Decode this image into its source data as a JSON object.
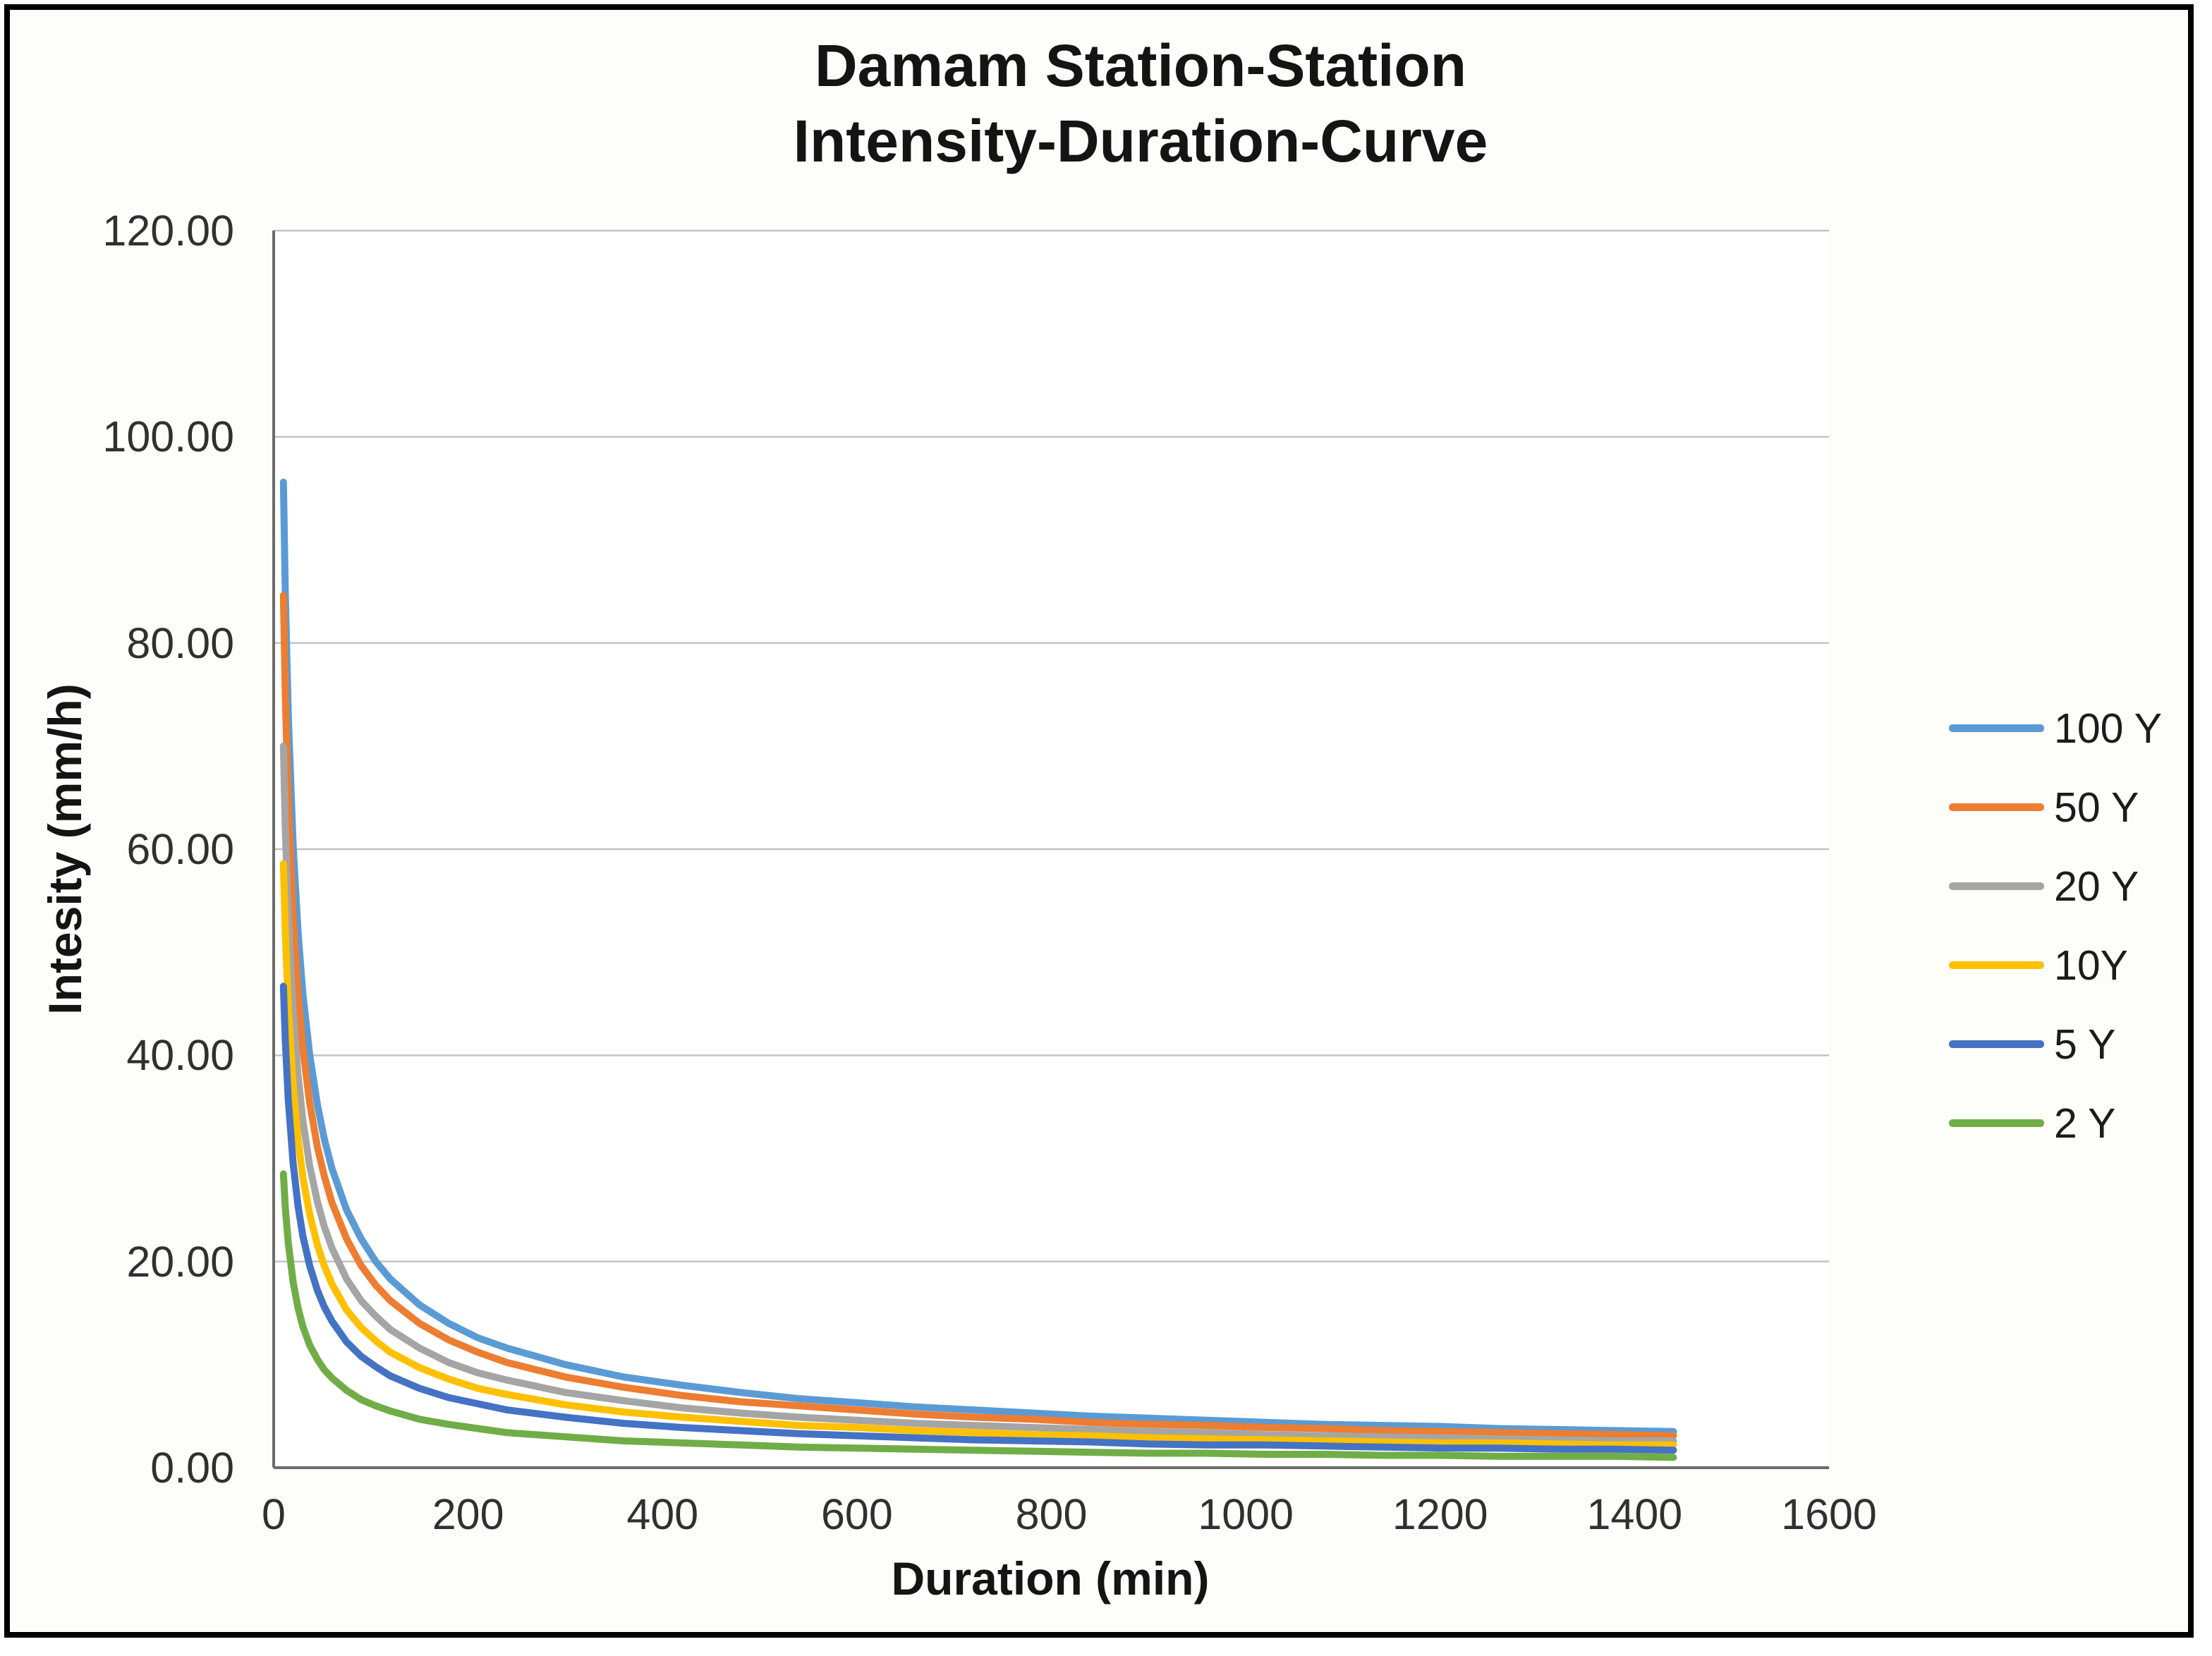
{
  "chart": {
    "title_line1": "Damam Station-Station",
    "title_line2": "Intensity-Duration-Curve",
    "ylabel": "Intesity (mm/h)",
    "xlabel": "Duration (min)"
  },
  "chart_data": {
    "type": "line",
    "title": "Damam Station-Station Intensity-Duration-Curve",
    "xlabel": "Duration (min)",
    "ylabel": "Intesity (mm/h)",
    "xlim": [
      0,
      1600
    ],
    "ylim": [
      0,
      120
    ],
    "x_tick_labels": [
      "0",
      "200",
      "400",
      "600",
      "800",
      "1000",
      "1200",
      "1400",
      "1600"
    ],
    "y_tick_labels": [
      "0.00",
      "20.00",
      "40.00",
      "60.00",
      "80.00",
      "100.00",
      "120.00"
    ],
    "grid": "horizontal",
    "legend_position": "right",
    "axis_color": "#6b6b6b",
    "gridline_color": "#c3c3c3",
    "x": [
      10,
      12,
      15,
      20,
      25,
      30,
      37,
      45,
      52,
      60,
      75,
      90,
      105,
      120,
      150,
      180,
      210,
      240,
      300,
      360,
      420,
      480,
      540,
      600,
      660,
      720,
      780,
      840,
      900,
      960,
      1020,
      1080,
      1140,
      1200,
      1260,
      1320,
      1380,
      1440
    ],
    "series": [
      {
        "name": "100 Y",
        "color": "#5B9BD5",
        "values": [
          95.6,
          84.7,
          73.0,
          60.3,
          52.0,
          46.0,
          40.1,
          35.2,
          31.9,
          29.0,
          25.0,
          22.2,
          20.0,
          18.3,
          15.8,
          14.0,
          12.6,
          11.6,
          10.0,
          8.8,
          8.0,
          7.3,
          6.7,
          6.3,
          5.9,
          5.6,
          5.3,
          5.0,
          4.8,
          4.6,
          4.4,
          4.2,
          4.1,
          4.0,
          3.8,
          3.7,
          3.6,
          3.5
        ]
      },
      {
        "name": "50 Y",
        "color": "#ED7D31",
        "values": [
          84.6,
          74.9,
          64.6,
          53.4,
          46.0,
          40.7,
          35.4,
          31.1,
          28.3,
          25.7,
          22.2,
          19.6,
          17.7,
          16.2,
          14.0,
          12.4,
          11.2,
          10.2,
          8.8,
          7.8,
          7.0,
          6.4,
          6.0,
          5.6,
          5.2,
          4.9,
          4.7,
          4.4,
          4.2,
          4.1,
          3.9,
          3.8,
          3.6,
          3.5,
          3.4,
          3.3,
          3.2,
          3.1
        ]
      },
      {
        "name": "20 Y",
        "color": "#A5A5A5",
        "values": [
          70.0,
          62.0,
          53.5,
          44.2,
          38.1,
          33.7,
          29.3,
          25.8,
          23.4,
          21.3,
          18.3,
          16.2,
          14.7,
          13.4,
          11.6,
          10.2,
          9.2,
          8.5,
          7.3,
          6.5,
          5.8,
          5.3,
          4.9,
          4.6,
          4.3,
          4.1,
          3.9,
          3.7,
          3.5,
          3.4,
          3.2,
          3.1,
          3.0,
          2.9,
          2.8,
          2.7,
          2.6,
          2.6
        ]
      },
      {
        "name": "10Y",
        "color": "#FFC000",
        "values": [
          58.6,
          51.9,
          44.8,
          37.0,
          31.9,
          28.2,
          24.6,
          21.6,
          19.6,
          17.8,
          15.3,
          13.6,
          12.3,
          11.2,
          9.7,
          8.6,
          7.7,
          7.1,
          6.1,
          5.4,
          4.9,
          4.5,
          4.1,
          3.9,
          3.6,
          3.4,
          3.2,
          3.1,
          2.9,
          2.8,
          2.7,
          2.6,
          2.5,
          2.4,
          2.4,
          2.3,
          2.2,
          2.2
        ]
      },
      {
        "name": "5 Y",
        "color": "#4472C4",
        "values": [
          46.7,
          41.4,
          35.7,
          29.5,
          25.4,
          22.5,
          19.6,
          17.2,
          15.6,
          14.2,
          12.2,
          10.8,
          9.8,
          8.9,
          7.7,
          6.8,
          6.2,
          5.6,
          4.9,
          4.3,
          3.9,
          3.6,
          3.3,
          3.1,
          2.9,
          2.7,
          2.6,
          2.5,
          2.3,
          2.2,
          2.2,
          2.1,
          2.0,
          1.9,
          1.9,
          1.8,
          1.8,
          1.7
        ]
      },
      {
        "name": "2 Y",
        "color": "#70AD47",
        "values": [
          28.5,
          25.2,
          21.8,
          18.0,
          15.5,
          13.7,
          11.9,
          10.5,
          9.5,
          8.7,
          7.5,
          6.6,
          6.0,
          5.5,
          4.7,
          4.2,
          3.8,
          3.4,
          3.0,
          2.6,
          2.4,
          2.2,
          2.0,
          1.9,
          1.8,
          1.7,
          1.6,
          1.5,
          1.4,
          1.4,
          1.3,
          1.3,
          1.2,
          1.2,
          1.1,
          1.1,
          1.1,
          1.0
        ]
      }
    ]
  }
}
